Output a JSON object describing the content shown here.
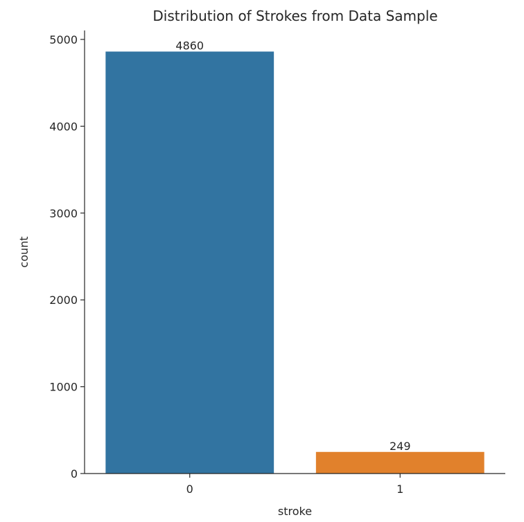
{
  "chart_data": {
    "type": "bar",
    "title": "Distribution of Strokes from Data Sample",
    "xlabel": "stroke",
    "ylabel": "count",
    "categories": [
      "0",
      "1"
    ],
    "values": [
      4860,
      249
    ],
    "data_labels": [
      "4860",
      "249"
    ],
    "colors": [
      "#3274a1",
      "#e1812c"
    ],
    "ylim": [
      0,
      5103
    ],
    "yticks": [
      0,
      1000,
      2000,
      3000,
      4000,
      5000
    ],
    "ytick_labels": [
      "0",
      "1000",
      "2000",
      "3000",
      "4000",
      "5000"
    ],
    "grid": false,
    "legend": "none"
  }
}
